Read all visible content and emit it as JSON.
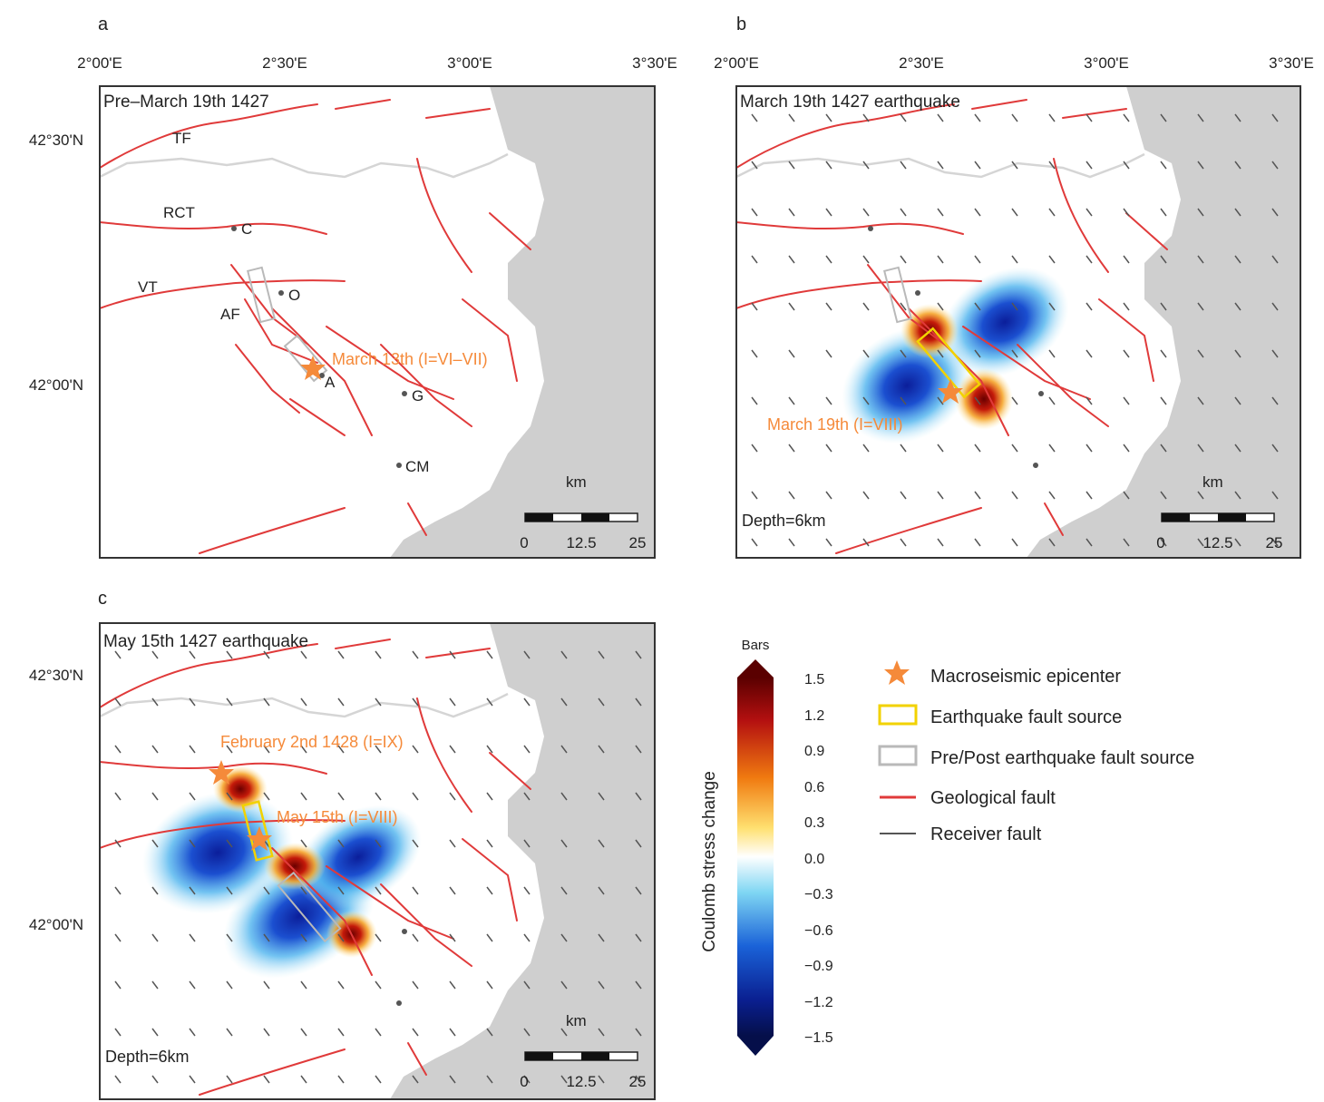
{
  "axes": {
    "lon_ticks": [
      "2°00'E",
      "2°30'E",
      "3°00'E",
      "3°30'E"
    ],
    "lat_ticks": [
      "42°30'N",
      "42°00'N"
    ]
  },
  "panels": [
    {
      "letter": "a",
      "title": "Pre–March 19th 1427",
      "events": [
        {
          "label": "March 13th (I=VI–VII)"
        }
      ],
      "depth": ""
    },
    {
      "letter": "b",
      "title": "March 19th 1427 earthquake",
      "events": [
        {
          "label": "March 19th (I=VIII)"
        }
      ],
      "depth": "Depth=6km"
    },
    {
      "letter": "c",
      "title": "May 15th 1427 earthquake",
      "events": [
        {
          "label": "February 2nd 1428 (I=IX)"
        },
        {
          "label": "May 15th (I=VIII)"
        }
      ],
      "depth": "Depth=6km"
    }
  ],
  "sites": [
    "C",
    "O",
    "A",
    "G",
    "CM"
  ],
  "faults": [
    "TF",
    "RCT",
    "VT",
    "AF"
  ],
  "scalebar": {
    "unit": "km",
    "labels": [
      "0",
      "12.5",
      "25"
    ]
  },
  "colorbar": {
    "title": "Coulomb stress change",
    "unit": "Bars",
    "ticks": [
      "1.5",
      "1.2",
      "0.9",
      "0.6",
      "0.3",
      "0.0",
      "−0.3",
      "−0.6",
      "−0.9",
      "−1.2",
      "−1.5"
    ],
    "range": [
      -1.5,
      1.5
    ]
  },
  "legend": [
    {
      "label": "Macroseismic epicenter",
      "icon": "star-icon"
    },
    {
      "label": "Earthquake fault source",
      "icon": "yellow-box-icon"
    },
    {
      "label": "Pre/Post earthquake fault source",
      "icon": "grey-box-icon"
    },
    {
      "label": "Geological fault",
      "icon": "red-line-icon"
    },
    {
      "label": "Receiver fault",
      "icon": "dark-line-icon"
    }
  ],
  "colors": {
    "fault": "#e03a3a",
    "epicenter": "#f58a3a",
    "sea": "#cfcfcf",
    "eq_source": "#f2d200"
  }
}
